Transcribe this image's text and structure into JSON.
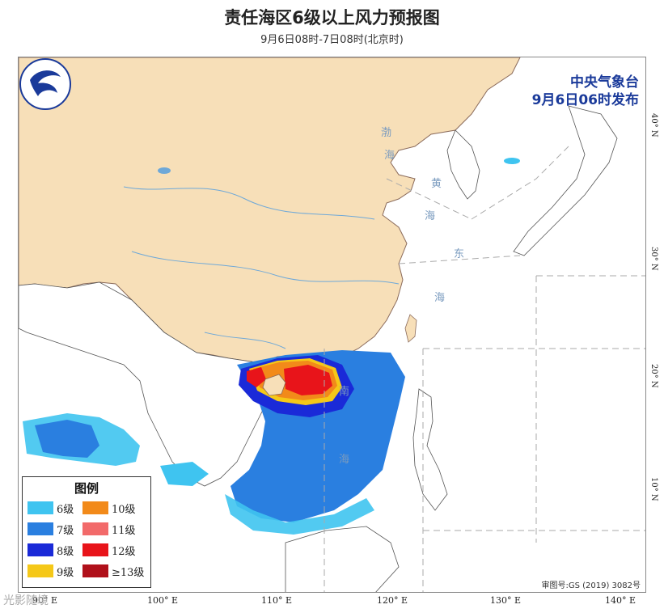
{
  "title": "责任海区6级以上风力预报图",
  "subtitle": "9月6日08时-7日08时(北京时)",
  "issuer": {
    "org": "中央气象台",
    "time": "9月6日06时发布"
  },
  "legend": {
    "title": "图例",
    "items": [
      {
        "label": "6级",
        "color": "#3fc4f0"
      },
      {
        "label": "10级",
        "color": "#f28a1a"
      },
      {
        "label": "7级",
        "color": "#2a7fe0"
      },
      {
        "label": "11级",
        "color": "#f26a6a"
      },
      {
        "label": "8级",
        "color": "#1a2ad8"
      },
      {
        "label": "12级",
        "color": "#e8141a"
      },
      {
        "label": "9级",
        "color": "#f5c818"
      },
      {
        "label": "≥13级",
        "color": "#b0101a"
      }
    ]
  },
  "sea_labels": {
    "bohai_1": "渤",
    "bohai_2": "海",
    "yellow_1": "黄",
    "yellow_2": "海",
    "east_1": "东",
    "east_2": "海",
    "south_1": "南",
    "south_2": "海"
  },
  "x_ticks": [
    "90° E",
    "100° E",
    "110° E",
    "120° E",
    "130° E",
    "140° E"
  ],
  "y_ticks": [
    "40° N",
    "30° N",
    "20° N",
    "10° N"
  ],
  "review_number": "审图号:GS (2019) 3082号",
  "watermark": "光影随境",
  "colors": {
    "land": "#f7dfb8",
    "sea": "#ffffff",
    "border": "#8a6a5a",
    "issuer": "#1a3a9a"
  }
}
